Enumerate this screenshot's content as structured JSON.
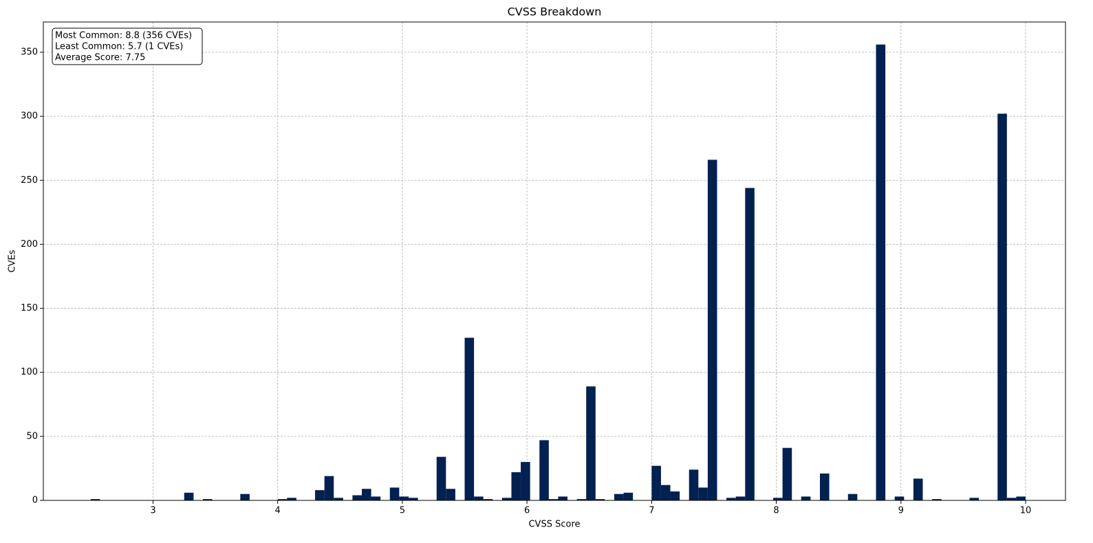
{
  "chart_data": {
    "type": "histogram",
    "title": "CVSS Breakdown",
    "x_label": "CVSS Score",
    "y_label": "CVEs",
    "annotation": [
      "Most Common: 8.8 (356 CVEs)",
      "Least Common: 5.7 (1 CVEs)",
      "Average Score: 7.75"
    ],
    "color": "#022150",
    "grid": true,
    "bins": [
      2.5,
      2.575,
      2.65,
      2.725,
      2.8,
      2.875,
      2.95,
      3.025,
      3.1,
      3.175,
      3.25,
      3.325,
      3.4,
      3.475,
      3.55,
      3.625,
      3.7,
      3.775,
      3.85,
      3.925,
      4.0,
      4.075,
      4.15,
      4.225,
      4.3,
      4.375,
      4.45,
      4.525,
      4.6,
      4.675,
      4.75,
      4.825,
      4.9,
      4.975,
      5.05,
      5.125,
      5.2,
      5.275,
      5.35,
      5.425,
      5.5,
      5.575,
      5.65,
      5.725,
      5.8,
      5.875,
      5.95,
      6.025,
      6.1,
      6.175,
      6.25,
      6.325,
      6.4,
      6.475,
      6.55,
      6.625,
      6.7,
      6.775,
      6.85,
      6.925,
      7.0,
      7.075,
      7.15,
      7.225,
      7.3,
      7.375,
      7.45,
      7.525,
      7.6,
      7.675,
      7.75,
      7.825,
      7.9,
      7.975,
      8.05,
      8.125,
      8.2,
      8.275,
      8.35,
      8.425,
      8.5,
      8.575,
      8.65,
      8.725,
      8.8,
      8.875,
      8.95,
      9.025,
      9.1,
      9.175,
      9.25,
      9.325,
      9.4,
      9.475,
      9.55,
      9.625,
      9.7,
      9.775,
      9.85,
      9.925,
      10.0
    ],
    "values": [
      1,
      0,
      0,
      0,
      0,
      0,
      0,
      0,
      0,
      0,
      6,
      0,
      1,
      0,
      0,
      0,
      5,
      0,
      0,
      0,
      1,
      2,
      0,
      0,
      8,
      19,
      2,
      0,
      4,
      9,
      3,
      0,
      10,
      3,
      2,
      0,
      0,
      34,
      9,
      0,
      127,
      3,
      1,
      0,
      2,
      22,
      30,
      0,
      47,
      1,
      3,
      0,
      1,
      89,
      1,
      0,
      5,
      6,
      0,
      0,
      27,
      12,
      7,
      0,
      24,
      10,
      266,
      0,
      2,
      3,
      244,
      0,
      0,
      2,
      41,
      0,
      3,
      0,
      21,
      0,
      0,
      5,
      0,
      0,
      356,
      0,
      3,
      0,
      17,
      0,
      1,
      0,
      0,
      0,
      2,
      0,
      0,
      302,
      2,
      3
    ],
    "xlim": [
      2.12,
      10.32
    ],
    "xticks": [
      3,
      4,
      5,
      6,
      7,
      8,
      9,
      10
    ],
    "ylim": [
      0,
      373.6
    ],
    "yticks": [
      0,
      50,
      100,
      150,
      200,
      250,
      300,
      350
    ]
  }
}
